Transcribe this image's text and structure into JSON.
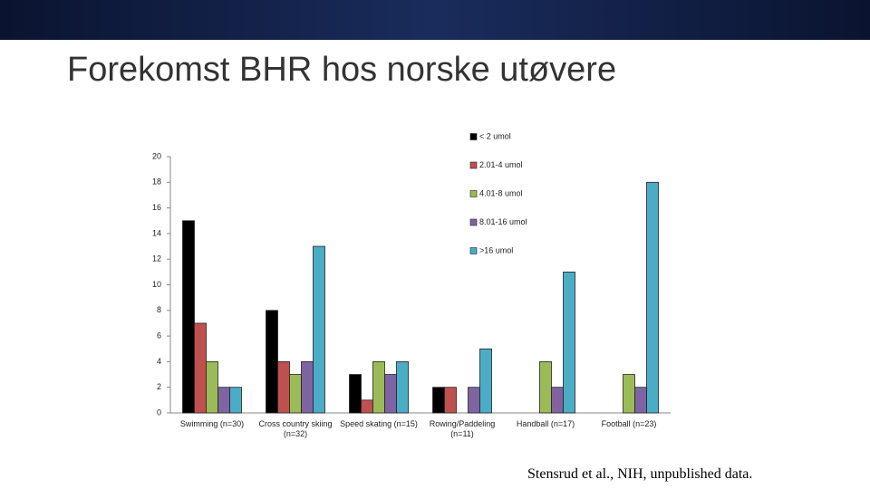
{
  "title": "Forekomst BHR hos norske utøvere",
  "source": "Stensrud et al., NIH, unpublished data.",
  "chart_data": {
    "type": "bar",
    "categories": [
      "Swimming (n=30)",
      "Cross country skiing (n=32)",
      "Speed skating (n=15)",
      "Rowing/Paddeling (n=11)",
      "Handball (n=17)",
      "Football (n=23)"
    ],
    "series": [
      {
        "name": "< 2 umol",
        "color": "#000000",
        "values": [
          15,
          8,
          3,
          2,
          0,
          0
        ]
      },
      {
        "name": "2.01-4 umol",
        "color": "#c0504d",
        "values": [
          7,
          4,
          1,
          2,
          0,
          0
        ]
      },
      {
        "name": "4.01-8 umol",
        "color": "#9bbb59",
        "values": [
          4,
          3,
          4,
          0,
          4,
          3
        ]
      },
      {
        "name": "8.01-16 umol",
        "color": "#8064a2",
        "values": [
          2,
          4,
          3,
          2,
          2,
          2
        ]
      },
      {
        "name": ">16 umol",
        "color": "#4bacc6",
        "values": [
          2,
          13,
          4,
          5,
          11,
          18
        ]
      }
    ],
    "ylim": [
      0,
      20
    ],
    "yticks": [
      0,
      2,
      4,
      6,
      8,
      10,
      12,
      14,
      16,
      18,
      20
    ],
    "grid": false
  }
}
